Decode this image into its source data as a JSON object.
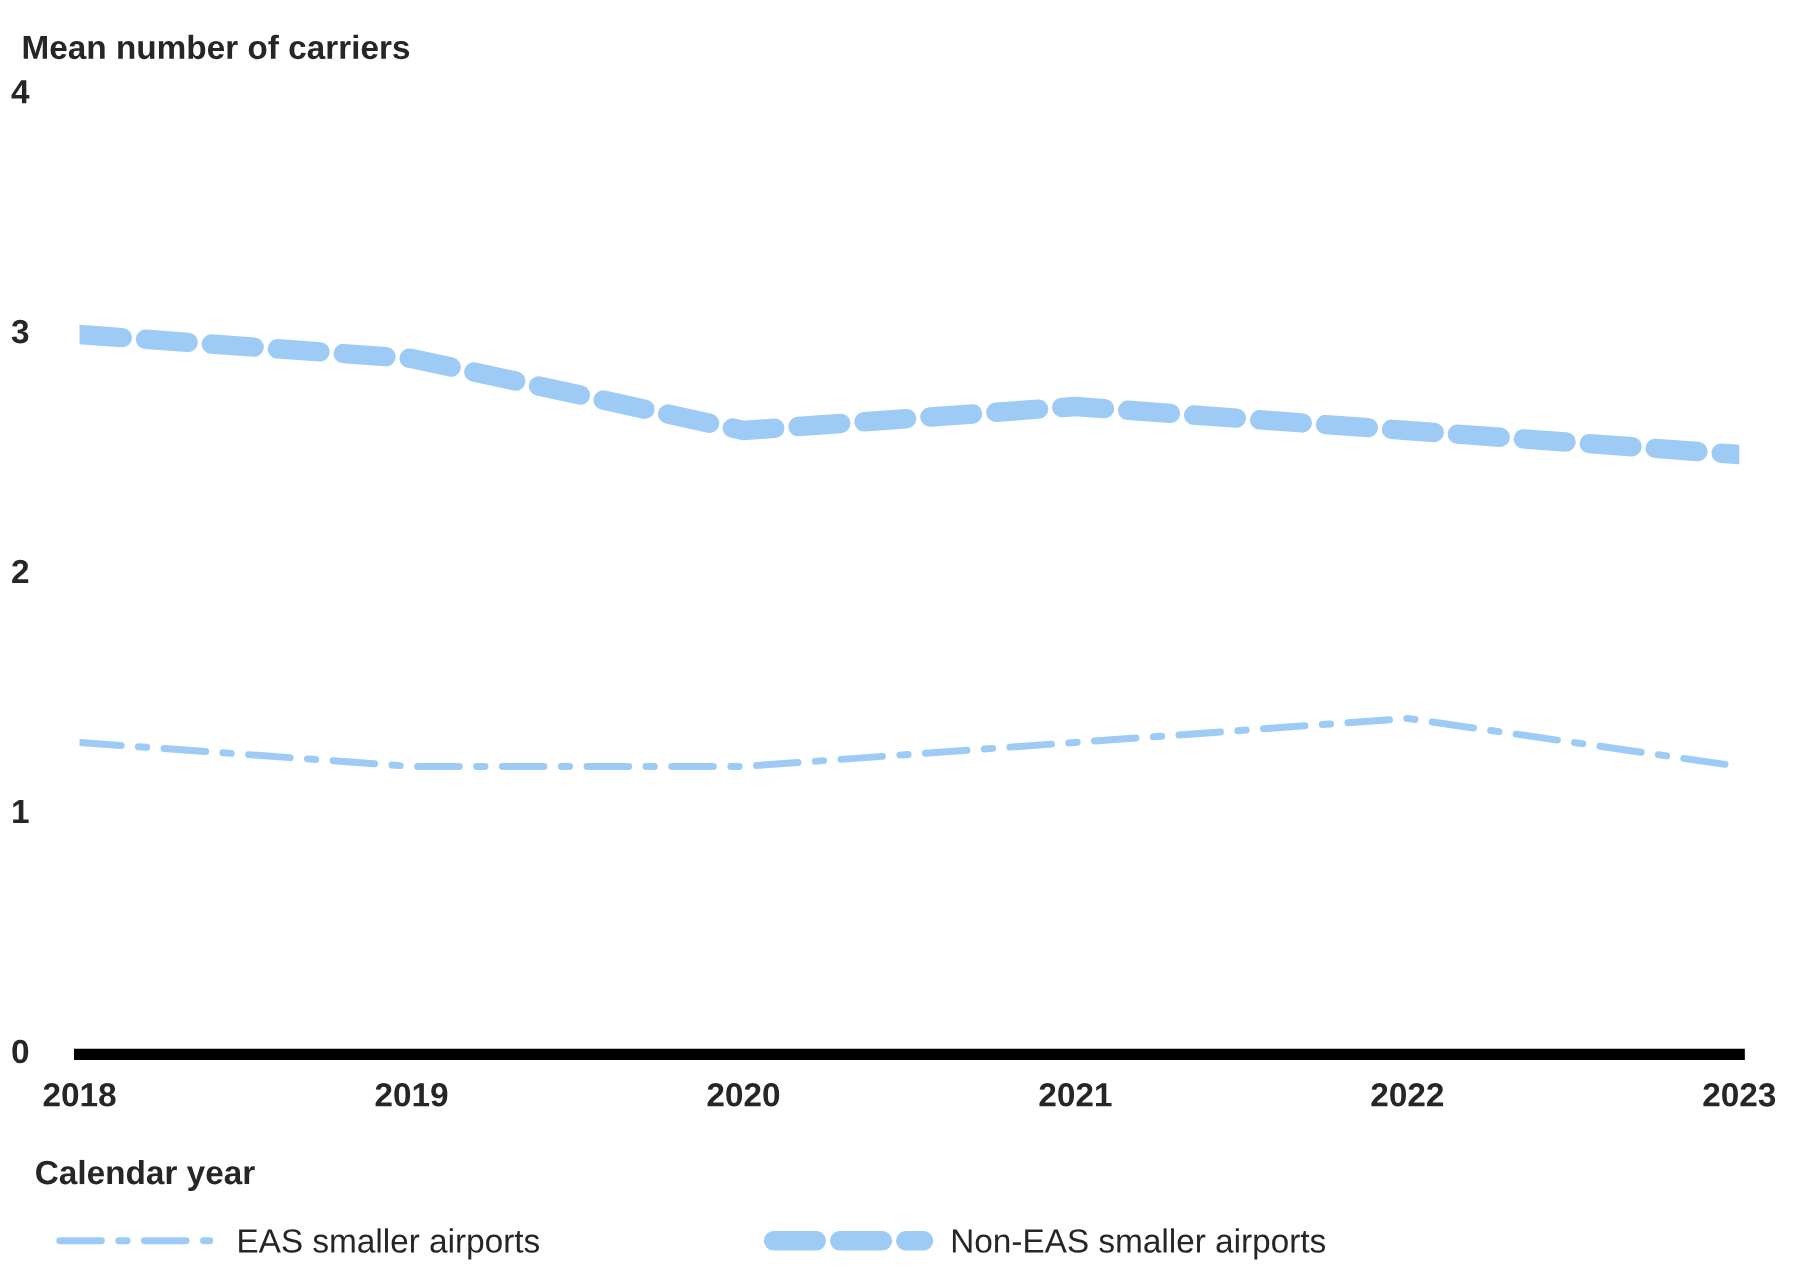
{
  "chart_data": {
    "type": "line",
    "ylabel": "Mean number of carriers",
    "xlabel": "Calendar year",
    "x": [
      2018,
      2019,
      2020,
      2021,
      2022,
      2023
    ],
    "series": [
      {
        "name": "EAS smaller airports",
        "color": "#9dcbf5",
        "line_style": "dashdot",
        "values": [
          1.3,
          1.2,
          1.2,
          1.3,
          1.4,
          1.2
        ]
      },
      {
        "name": "Non-EAS smaller airports",
        "color": "#9dcbf5",
        "line_style": "dashed",
        "values": [
          3.0,
          2.9,
          2.6,
          2.7,
          2.6,
          2.5
        ]
      }
    ],
    "xlim": [
      2018,
      2023
    ],
    "xticks": [
      2018,
      2019,
      2020,
      2021,
      2022,
      2023
    ],
    "ylim": [
      0,
      4
    ],
    "yticks": [
      0,
      1,
      2,
      3,
      4
    ],
    "grid": false,
    "legend": "bottom"
  }
}
